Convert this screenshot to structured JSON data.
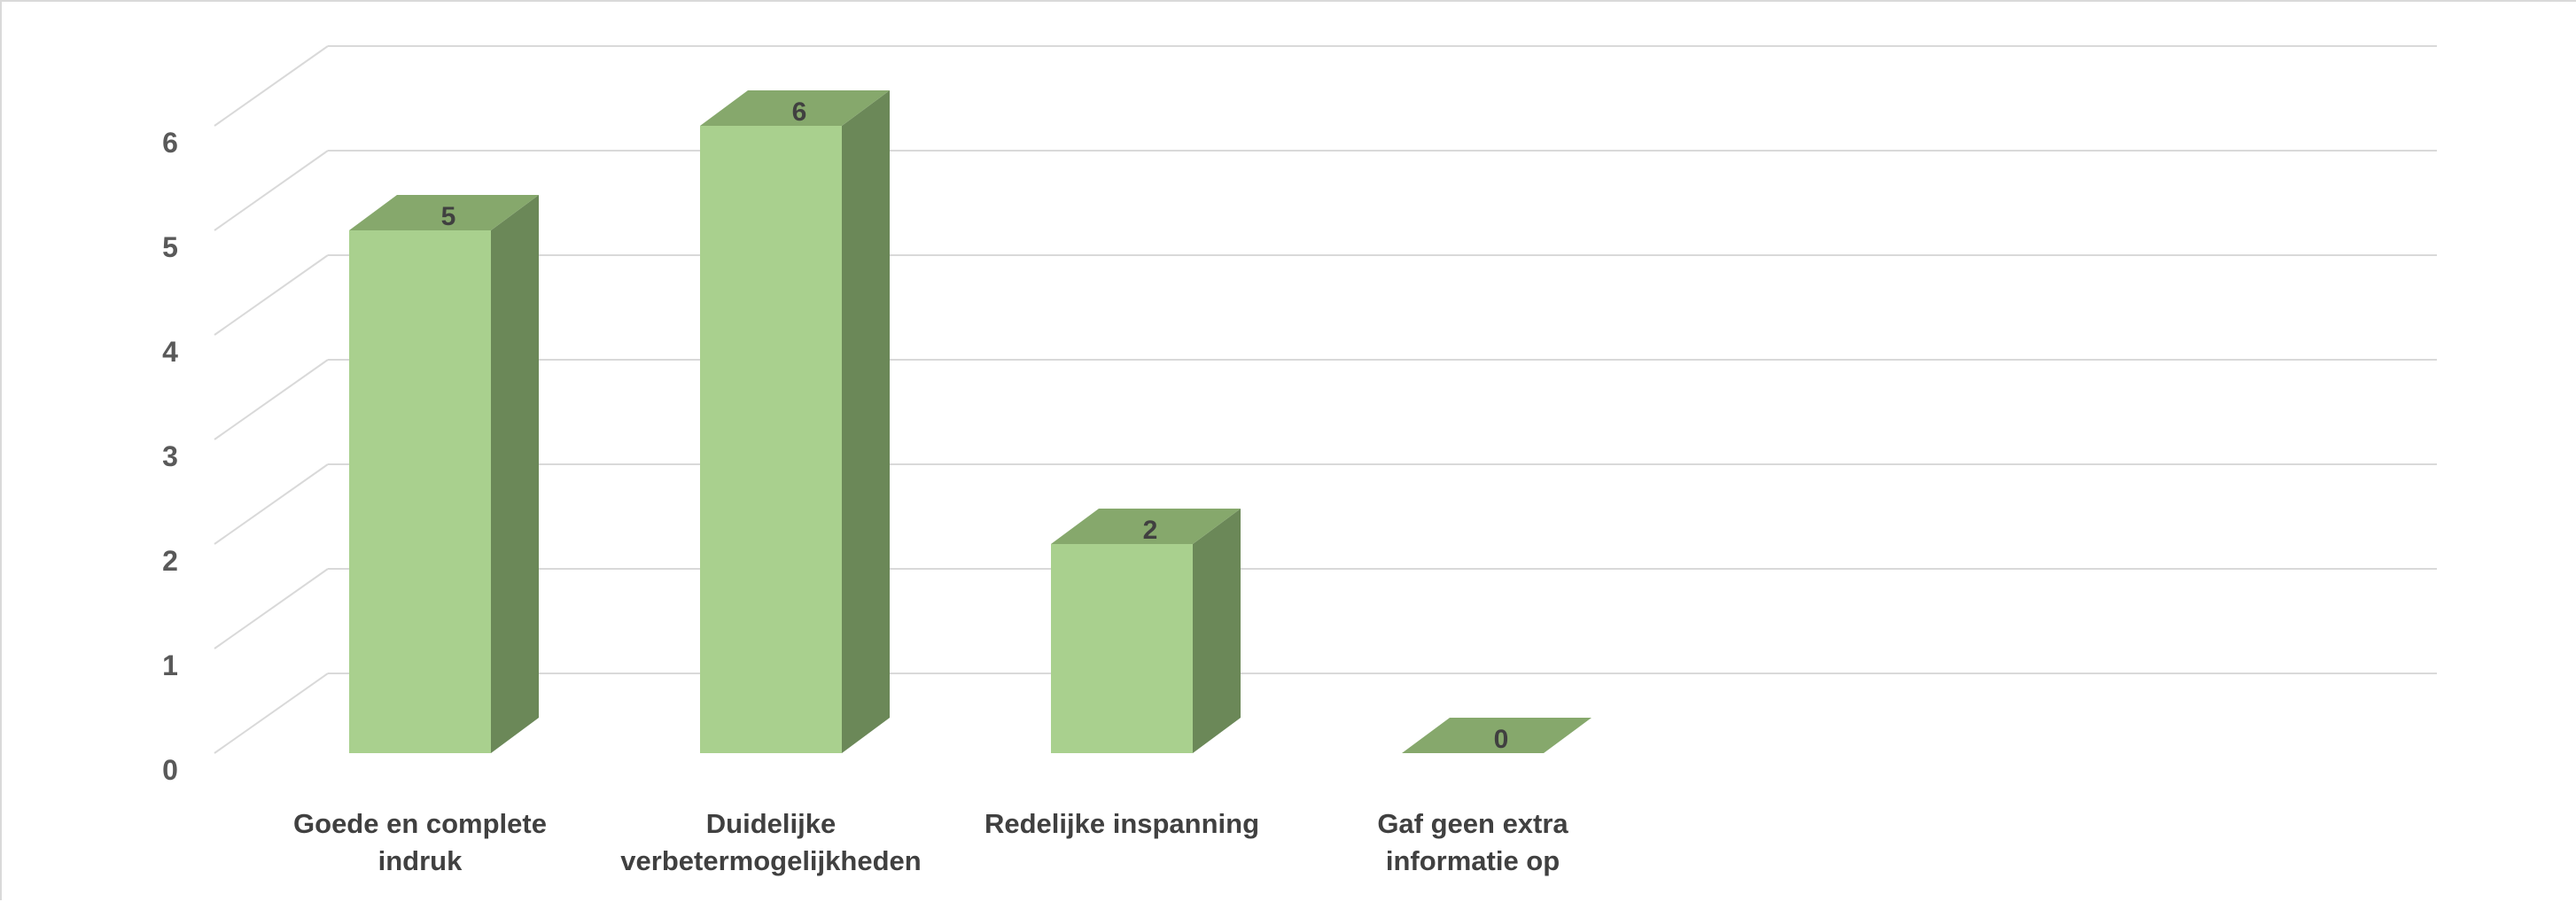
{
  "chart_data": {
    "type": "bar",
    "style": "3d-column",
    "categories": [
      [
        "Goede en complete",
        "indruk"
      ],
      [
        "Duidelijke",
        "verbetermogelijkheden"
      ],
      [
        "Redelijke inspanning"
      ],
      [
        "Gaf geen extra",
        "informatie op"
      ]
    ],
    "values": [
      5,
      6,
      2,
      0
    ],
    "data_labels": [
      "5",
      "6",
      "2",
      "0"
    ],
    "y_ticks": [
      "0",
      "1",
      "2",
      "3",
      "4",
      "5",
      "6"
    ],
    "ylim": [
      0,
      6
    ],
    "grid": true,
    "colors": {
      "bar_front": "#a9d08e",
      "bar_top": "#86a86c",
      "bar_side": "#6b8858",
      "gridline": "#d9d9d9",
      "text": "#404040"
    }
  }
}
